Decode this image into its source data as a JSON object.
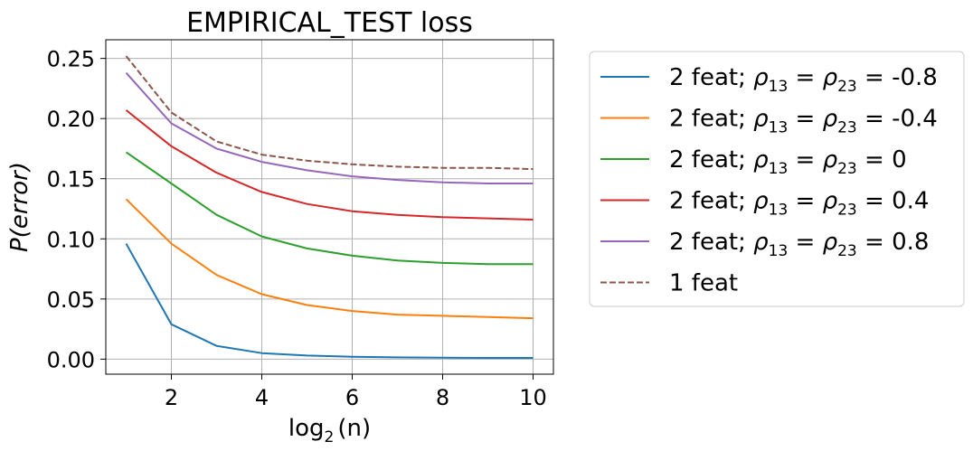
{
  "chart_data": {
    "type": "line",
    "title": "EMPIRICAL_TEST loss",
    "xlabel": "log",
    "xlabel_sub": "2",
    "xlabel_arg": "(n)",
    "ylabel": "P(error)",
    "xlim": [
      0.55,
      10.45
    ],
    "ylim": [
      -0.0125,
      0.2655
    ],
    "xticks": [
      2,
      4,
      6,
      8,
      10
    ],
    "yticks": [
      0.0,
      0.05,
      0.1,
      0.15,
      0.2,
      0.25
    ],
    "ytick_labels": [
      "0.00",
      "0.05",
      "0.10",
      "0.15",
      "0.20",
      "0.25"
    ],
    "grid": true,
    "legend_position": "outside-right",
    "x": [
      1,
      2,
      3,
      4,
      5,
      6,
      7,
      8,
      9,
      10
    ],
    "series": [
      {
        "legend_prefix": "2 feat; ",
        "legend_value": " = -0.8",
        "color": "#1f77b4",
        "dash": "solid",
        "values": [
          0.096,
          0.029,
          0.011,
          0.005,
          0.003,
          0.002,
          0.0015,
          0.0012,
          0.001,
          0.001
        ]
      },
      {
        "legend_prefix": "2 feat; ",
        "legend_value": " = -0.4",
        "color": "#ff7f0e",
        "dash": "solid",
        "values": [
          0.133,
          0.096,
          0.07,
          0.054,
          0.045,
          0.04,
          0.037,
          0.036,
          0.035,
          0.034
        ]
      },
      {
        "legend_prefix": "2 feat; ",
        "legend_value": " = 0",
        "color": "#2ca02c",
        "dash": "solid",
        "values": [
          0.172,
          0.146,
          0.12,
          0.102,
          0.092,
          0.086,
          0.082,
          0.08,
          0.079,
          0.079
        ]
      },
      {
        "legend_prefix": "2 feat; ",
        "legend_value": " = 0.4",
        "color": "#d62728",
        "dash": "solid",
        "values": [
          0.207,
          0.177,
          0.155,
          0.139,
          0.129,
          0.123,
          0.12,
          0.118,
          0.117,
          0.116
        ]
      },
      {
        "legend_prefix": "2 feat; ",
        "legend_value": " = 0.8",
        "color": "#9467bd",
        "dash": "solid",
        "values": [
          0.238,
          0.196,
          0.175,
          0.164,
          0.157,
          0.152,
          0.149,
          0.147,
          0.146,
          0.146
        ]
      },
      {
        "legend_prefix": "1 feat",
        "legend_value": "",
        "color": "#8c564b",
        "dash": "dashed",
        "values": [
          0.252,
          0.205,
          0.181,
          0.17,
          0.165,
          0.162,
          0.16,
          0.159,
          0.159,
          0.158
        ]
      }
    ]
  }
}
